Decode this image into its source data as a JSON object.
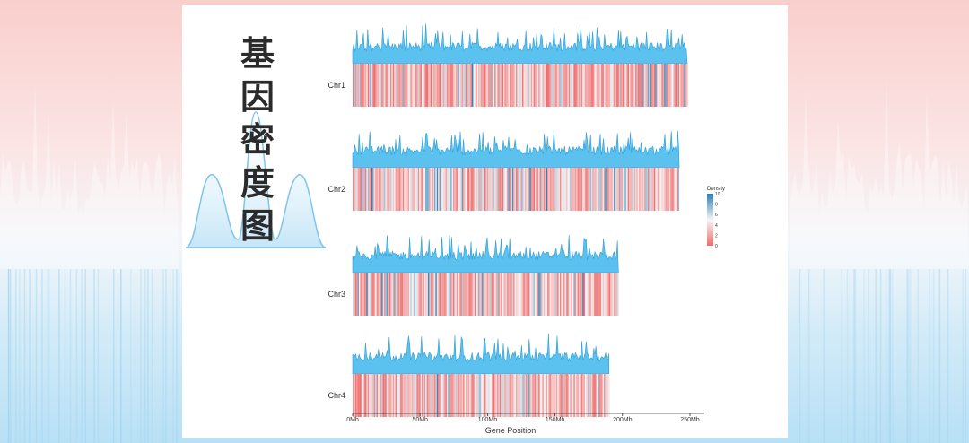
{
  "banner": {
    "title_chars": [
      "基",
      "因",
      "密",
      "度",
      "图"
    ],
    "colors": {
      "background_top": "#f9cfcc",
      "background_bottom": "#b8e0f5",
      "panel": "#ffffff",
      "title_text": "#2b2b2b",
      "title_curve": "#7fc4ea"
    }
  },
  "chart_data": {
    "type": "heatmap",
    "title": "",
    "xlabel": "Gene Position",
    "ylabel": "",
    "x_unit": "Mb",
    "xlim": [
      0,
      260
    ],
    "x_ticks": [
      "0Mb",
      "50Mb",
      "100Mb",
      "150Mb",
      "200Mb",
      "250Mb"
    ],
    "x_tick_values": [
      0,
      50,
      100,
      150,
      200,
      250
    ],
    "chromosomes": [
      {
        "name": "Chr1",
        "length_mb": 248
      },
      {
        "name": "Chr2",
        "length_mb": 242
      },
      {
        "name": "Chr3",
        "length_mb": 197
      },
      {
        "name": "Chr4",
        "length_mb": 190
      }
    ],
    "density_track": {
      "type": "area",
      "color": "#5bc1ef",
      "line_color": "#2f9fd6"
    },
    "legend": {
      "title": "Density",
      "position": "right",
      "range": [
        0,
        10
      ],
      "ticks": [
        "10",
        "8",
        "6",
        "4",
        "2",
        "0"
      ],
      "color_low": "#f26b6b",
      "color_mid": "#f5f5f5",
      "color_high": "#2a7fb8"
    },
    "grid": false
  }
}
